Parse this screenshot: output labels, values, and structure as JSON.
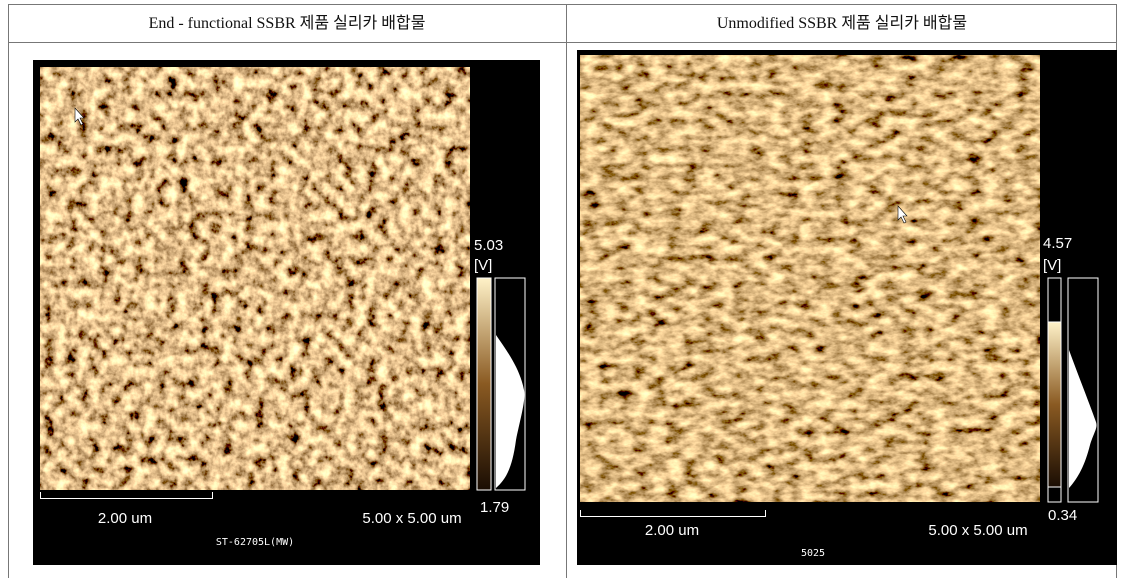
{
  "table": {
    "headers": [
      "End - functional SSBR 제품 실리카 배합물",
      "Unmodified SSBR 제품 실리카 배합물"
    ],
    "cells": [
      {
        "scale_max": "5.03",
        "unit": "[V]",
        "scale_min": "1.79",
        "scale_bar": "2.00 um",
        "scan_size": "5.00 x 5.00 um",
        "sample_id": "ST-62705L(MW)"
      },
      {
        "scale_max": "4.57",
        "unit": "[V]",
        "scale_min": "0.34",
        "scale_bar": "2.00 um",
        "scan_size": "5.00 x 5.00 um",
        "sample_id": "5025"
      }
    ]
  }
}
